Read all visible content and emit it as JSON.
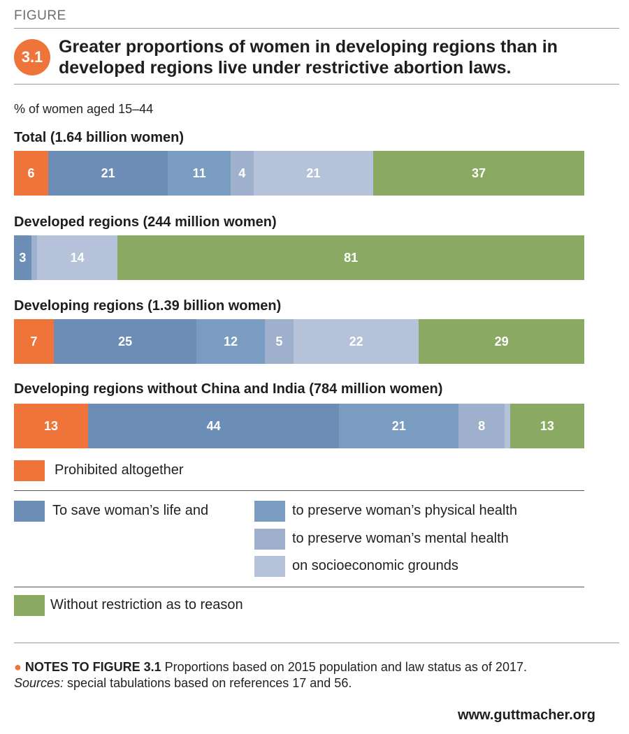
{
  "figure_label": "FIGURE",
  "figure_number": "3.1",
  "title": "Greater proportions of women in developing regions than in developed regions live under restrictive abortion laws.",
  "unit_label": "% of women aged 15–44",
  "colors": {
    "prohibited": "#ee7439",
    "save_life": "#6c8db5",
    "physical_health": "#7a9cc1",
    "mental_health": "#9fb0cc",
    "socioeconomic": "#b5c2d9",
    "without_restriction": "#8aaa64",
    "badge": "#ee7439"
  },
  "chart_data": [
    {
      "type": "bar",
      "orientation": "horizontal-stacked",
      "title": "Total (1.64 billion women)",
      "xlim": [
        0,
        100
      ],
      "series": [
        {
          "key": "prohibited",
          "value": 6,
          "label": "6"
        },
        {
          "key": "save_life",
          "value": 21,
          "label": "21"
        },
        {
          "key": "physical_health",
          "value": 11,
          "label": "11"
        },
        {
          "key": "mental_health",
          "value": 4,
          "label": "4"
        },
        {
          "key": "socioeconomic",
          "value": 21,
          "label": "21"
        },
        {
          "key": "without_restriction",
          "value": 37,
          "label": "37"
        }
      ]
    },
    {
      "type": "bar",
      "orientation": "horizontal-stacked",
      "title": "Developed regions (244 million women)",
      "xlim": [
        0,
        100
      ],
      "series": [
        {
          "key": "prohibited",
          "value": 0,
          "label": ""
        },
        {
          "key": "save_life",
          "value": 3,
          "label": "3"
        },
        {
          "key": "physical_health",
          "value": 0,
          "label": ""
        },
        {
          "key": "mental_health",
          "value": 1,
          "label": ""
        },
        {
          "key": "socioeconomic",
          "value": 14,
          "label": "14"
        },
        {
          "key": "without_restriction",
          "value": 81,
          "label": "81"
        }
      ]
    },
    {
      "type": "bar",
      "orientation": "horizontal-stacked",
      "title": "Developing regions (1.39 billion women)",
      "xlim": [
        0,
        100
      ],
      "series": [
        {
          "key": "prohibited",
          "value": 7,
          "label": "7"
        },
        {
          "key": "save_life",
          "value": 25,
          "label": "25"
        },
        {
          "key": "physical_health",
          "value": 12,
          "label": "12"
        },
        {
          "key": "mental_health",
          "value": 5,
          "label": "5"
        },
        {
          "key": "socioeconomic",
          "value": 22,
          "label": "22"
        },
        {
          "key": "without_restriction",
          "value": 29,
          "label": "29"
        }
      ]
    },
    {
      "type": "bar",
      "orientation": "horizontal-stacked",
      "title": "Developing regions without China and India (784 million women)",
      "xlim": [
        0,
        100
      ],
      "series": [
        {
          "key": "prohibited",
          "value": 13,
          "label": "13"
        },
        {
          "key": "save_life",
          "value": 44,
          "label": "44"
        },
        {
          "key": "physical_health",
          "value": 21,
          "label": "21"
        },
        {
          "key": "mental_health",
          "value": 8,
          "label": "8"
        },
        {
          "key": "socioeconomic",
          "value": 1,
          "label": ""
        },
        {
          "key": "without_restriction",
          "value": 13,
          "label": "13"
        }
      ]
    }
  ],
  "legend": {
    "prohibited": "Prohibited altogether",
    "save_life": "To save woman’s life and",
    "physical_health": "to preserve woman’s physical health",
    "mental_health": "to preserve woman’s mental health",
    "socioeconomic": "on socioeconomic grounds",
    "without_restriction": "Without restriction as to reason"
  },
  "notes": {
    "heading": "NOTES TO FIGURE 3.1",
    "text": " Proportions based on 2015 population and law status as of 2017.",
    "sources_label": "Sources:",
    "sources_text": " special tabulations based on references 17 and 56."
  },
  "site_url": "www.guttmacher.org"
}
